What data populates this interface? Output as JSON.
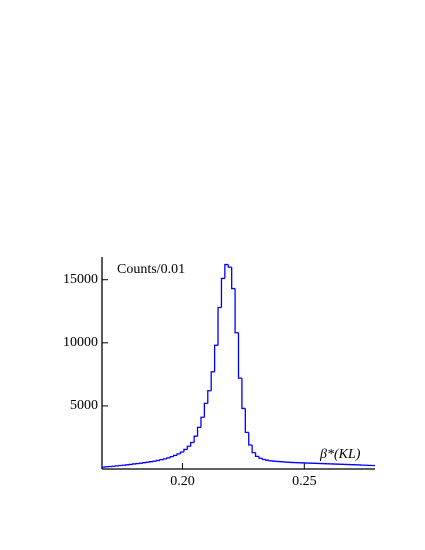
{
  "chart_data": {
    "type": "histogram",
    "x_label": "β*(KL)",
    "y_label": "Counts/0.01",
    "color": "#0000ff",
    "bins": [
      0.167,
      0.1684,
      0.1698,
      0.1712,
      0.1726,
      0.174,
      0.1754,
      0.1768,
      0.1782,
      0.1796,
      0.181,
      0.1824,
      0.1838,
      0.1852,
      0.1866,
      0.188,
      0.1894,
      0.1908,
      0.1922,
      0.1936,
      0.195,
      0.1964,
      0.1978,
      0.1992,
      0.2006,
      0.202,
      0.2034,
      0.2048,
      0.2062,
      0.2076,
      0.209,
      0.2104,
      0.2118,
      0.2132,
      0.2146,
      0.216,
      0.2174,
      0.2188,
      0.2202,
      0.2216,
      0.223,
      0.2244,
      0.2258,
      0.2272,
      0.2286,
      0.23,
      0.2314,
      0.2328,
      0.2342,
      0.2356,
      0.237,
      0.2384,
      0.2398,
      0.2412,
      0.2426,
      0.244,
      0.2454,
      0.2468,
      0.2482,
      0.2496,
      0.251,
      0.2524,
      0.2538,
      0.2552,
      0.2566,
      0.258,
      0.2594,
      0.2608,
      0.2622,
      0.2636,
      0.265,
      0.2664,
      0.2678,
      0.2692,
      0.2706,
      0.272,
      0.2734,
      0.2748,
      0.2762,
      0.2776,
      0.279
    ],
    "values": [
      150,
      180,
      200,
      220,
      250,
      280,
      300,
      330,
      360,
      400,
      430,
      460,
      500,
      540,
      580,
      620,
      680,
      740,
      800,
      880,
      980,
      1080,
      1200,
      1350,
      1550,
      1800,
      2100,
      2600,
      3300,
      4100,
      5200,
      6200,
      7700,
      9800,
      12800,
      15100,
      16200,
      16000,
      14300,
      10800,
      7200,
      4800,
      2900,
      1900,
      1300,
      1000,
      850,
      750,
      700,
      650,
      620,
      600,
      580,
      560,
      540,
      520,
      510,
      500,
      490,
      480,
      470,
      460,
      450,
      440,
      430,
      420,
      410,
      400,
      390,
      380,
      370,
      360,
      350,
      340,
      330,
      320,
      310,
      300,
      290,
      280
    ],
    "xlim": [
      0.167,
      0.279
    ],
    "xticks": [
      {
        "value": 0.2,
        "label": "0.20"
      },
      {
        "value": 0.25,
        "label": "0.25"
      }
    ],
    "ylim": [
      0,
      16800
    ],
    "yticks": [
      5000,
      10000,
      15000
    ]
  }
}
